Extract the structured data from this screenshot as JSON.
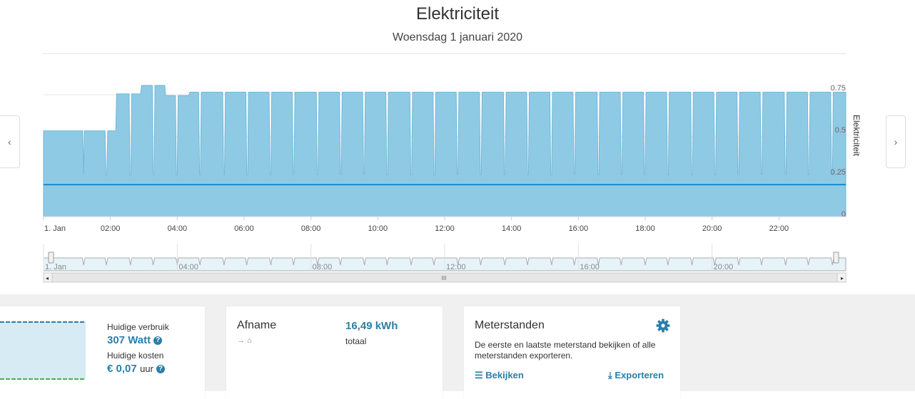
{
  "header": {
    "title": "Elektriciteit",
    "date": "Woensdag 1 januari 2020"
  },
  "nav": {
    "prev_icon": "chevron-left-icon",
    "next_icon": "chevron-right-icon",
    "prev_glyph": "‹",
    "next_glyph": "›"
  },
  "chart_data": {
    "type": "area",
    "title": "",
    "ylabel": "Elektriciteit",
    "ylim": [
      0,
      0.75
    ],
    "yticks": [
      "0",
      "0.25",
      "0.5",
      "0.75"
    ],
    "xticks": [
      "1. Jan",
      "02:00",
      "04:00",
      "06:00",
      "08:00",
      "10:00",
      "12:00",
      "14:00",
      "16:00",
      "18:00",
      "20:00",
      "22:00"
    ],
    "x_range_hours": [
      0,
      24
    ],
    "baseline_value": 0.19,
    "series": [
      {
        "values": [
          0.51,
          0.51,
          0.51,
          0.73,
          0.78,
          0.72,
          0.74,
          0.74,
          0.74,
          0.74,
          0.74,
          0.74,
          0.74,
          0.74,
          0.74,
          0.74,
          0.74,
          0.74,
          0.74,
          0.74,
          0.74,
          0.74,
          0.74,
          0.74,
          0.74,
          0.74,
          0.74,
          0.74,
          0.74,
          0.74,
          0.74,
          0.74,
          0.74
        ]
      }
    ],
    "grid": true
  },
  "navigator": {
    "xticks": [
      "1. Jan",
      "04:00",
      "08:00",
      "12:00",
      "16:00",
      "20:00"
    ],
    "scroll_glyph": "III"
  },
  "cards": {
    "current": {
      "usage_label": "Huidige verbruik",
      "usage_value": "307 Watt",
      "cost_label": "Huidige kosten",
      "cost_value": "€ 0,07",
      "cost_unit": "uur",
      "help_glyph": "?"
    },
    "afname": {
      "title": "Afname",
      "value": "16,49 kWh",
      "value_label": "totaal",
      "icons": "→ ⌂"
    },
    "meterstanden": {
      "title": "Meterstanden",
      "description": "De eerste en laatste meterstand bekijken of alle meterstanden exporteren.",
      "view_label": "Bekijken",
      "export_label": "Exporteren"
    }
  },
  "colors": {
    "accent": "#2a7fa9",
    "area": "#8fcae4",
    "line": "#1b87c9"
  }
}
